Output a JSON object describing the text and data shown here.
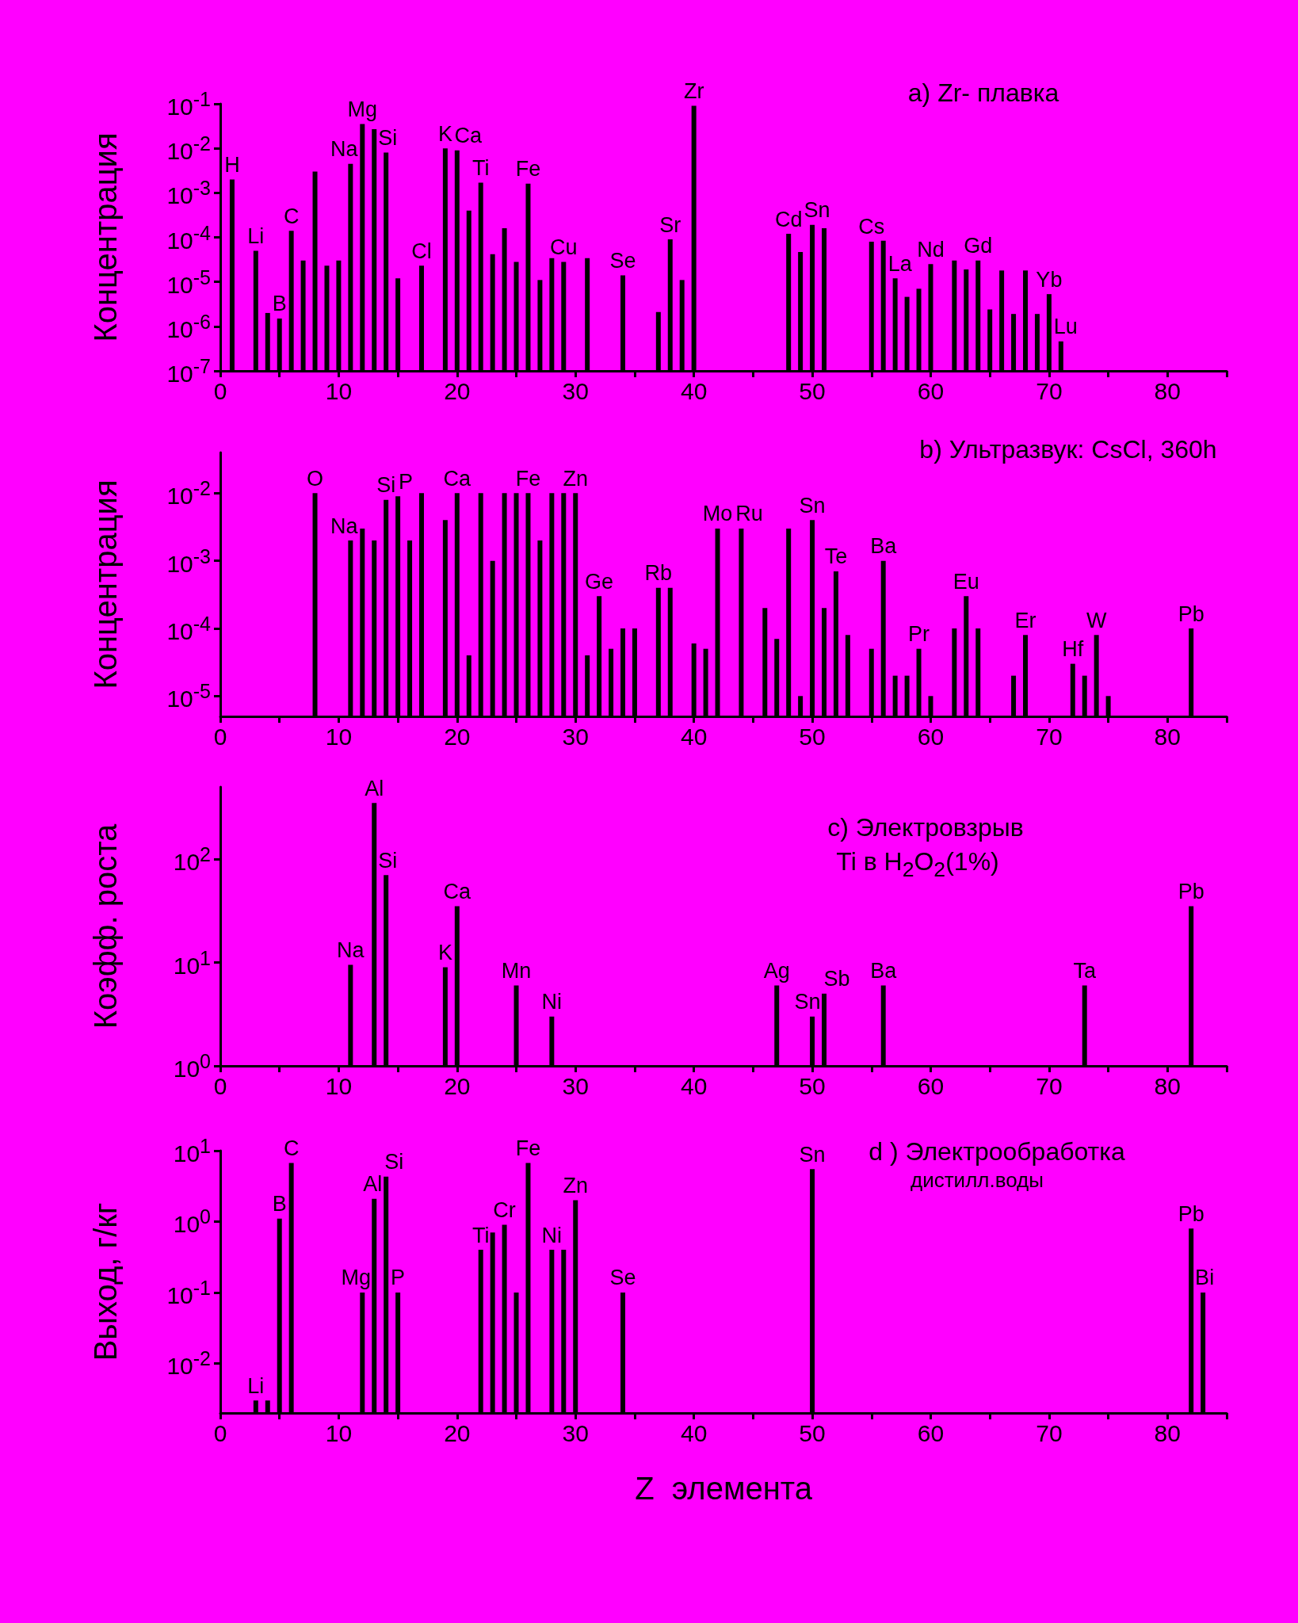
{
  "chart_data": [
    {
      "type": "bar",
      "title": "a) Zr- плавка",
      "ylabel": "Концентрация",
      "log": "y",
      "grid": false,
      "color": "#000000",
      "xlim": [
        0,
        85
      ],
      "xticks": [
        0,
        {
          "value": 5,
          "label": null
        },
        10,
        {
          "value": 15,
          "label": null
        },
        20,
        {
          "value": 25,
          "label": null
        },
        30,
        {
          "value": 35,
          "label": null
        },
        40,
        {
          "value": 45,
          "label": null
        },
        50,
        {
          "value": 55,
          "label": null
        },
        60,
        {
          "value": 65,
          "label": null
        },
        70,
        {
          "value": 75,
          "label": null
        },
        80,
        {
          "value": 85,
          "label": null
        }
      ],
      "ylim": [
        1e-07,
        0.1
      ],
      "yticks": [
        {
          "value": 1e-07,
          "label": "10$^{-7}$"
        },
        {
          "value": 1e-06,
          "label": "10$^{-6}$"
        },
        {
          "value": 1e-05,
          "label": "10$^{-5}$"
        },
        {
          "value": 0.0001,
          "label": "10$^{-4}$"
        },
        {
          "value": 0.001,
          "label": "10$^{-3}$"
        },
        {
          "value": 0.01,
          "label": "10$^{-2}$"
        },
        {
          "value": 0.1,
          "label": "10$^{-1}$"
        }
      ],
      "x": [
        1,
        3,
        4,
        5,
        6,
        7,
        8,
        9,
        10,
        11,
        12,
        13,
        14,
        15,
        17,
        19,
        20,
        21,
        22,
        23,
        24,
        25,
        26,
        27,
        28,
        29,
        31,
        34,
        37,
        38,
        39,
        40,
        48,
        49,
        50,
        51,
        55,
        56,
        57,
        58,
        59,
        60,
        62,
        63,
        64,
        65,
        66,
        67,
        68,
        69,
        70,
        71
      ],
      "values": [
        0.002,
        5e-05,
        2e-06,
        1.5e-06,
        0.00014,
        3e-05,
        0.003,
        2.3e-05,
        3e-05,
        0.0045,
        0.035,
        0.027,
        0.008,
        1.2e-05,
        2.3e-05,
        0.01,
        0.009,
        0.0004,
        0.0017,
        4.2e-05,
        0.00016,
        2.8e-05,
        0.0016,
        1.1e-05,
        3.4e-05,
        2.8e-05,
        3.4e-05,
        1.4e-05,
        2.1e-06,
        9e-05,
        1.1e-05,
        0.09,
        0.00012,
        4.7e-05,
        0.00019,
        0.00016,
        8e-05,
        8.4e-05,
        1.2e-05,
        4.6e-06,
        7e-06,
        2.5e-05,
        3e-05,
        1.9e-05,
        3e-05,
        2.4e-06,
        1.8e-05,
        1.9e-06,
        1.8e-05,
        1.9e-06,
        5.3e-06,
        4.6e-07
      ],
      "annotations": [
        {
          "text": "H",
          "x": 1,
          "y": 0.002
        },
        {
          "text": "Li",
          "x": 3,
          "y": 5e-05
        },
        {
          "text": "B",
          "x": 5,
          "y": 1.5e-06
        },
        {
          "text": "C",
          "x": 6,
          "y": 0.00014
        },
        {
          "text": "Na",
          "x": 11,
          "y": 0.0045
        },
        {
          "text": "Mg",
          "x": 12,
          "y": 0.035
        },
        {
          "text": "Si",
          "x": 14,
          "y": 0.008
        },
        {
          "text": "Cl",
          "x": 17,
          "y": 2.3e-05
        },
        {
          "text": "K",
          "x": 19,
          "y": 0.01
        },
        {
          "text": "Ca",
          "x": 20,
          "y": 0.009
        },
        {
          "text": "Ti",
          "x": 22,
          "y": 0.0017
        },
        {
          "text": "Fe",
          "x": 26,
          "y": 0.0016
        },
        {
          "text": "Cu",
          "x": 29,
          "y": 2.8e-05
        },
        {
          "text": "Se",
          "x": 34,
          "y": 1.4e-05
        },
        {
          "text": "Sr",
          "x": 38,
          "y": 9e-05
        },
        {
          "text": "Zr",
          "x": 40,
          "y": 0.09
        },
        {
          "text": "Cd",
          "x": 48,
          "y": 0.00012
        },
        {
          "text": "Sn",
          "x": 50,
          "y": 0.00019
        },
        {
          "text": "Cs",
          "x": 55,
          "y": 8e-05
        },
        {
          "text": "La",
          "x": 57,
          "y": 1.2e-05
        },
        {
          "text": "Nd",
          "x": 60,
          "y": 2.5e-05
        },
        {
          "text": "Gd",
          "x": 64,
          "y": 3e-05
        },
        {
          "text": "Yb",
          "x": 70,
          "y": 5.3e-06
        },
        {
          "text": "Lu",
          "x": 71,
          "y": 4.6e-07
        }
      ]
    },
    {
      "type": "bar",
      "title": "b) Ультразвук: CsCl, 360h",
      "ylabel": "Концентрация",
      "log": "y",
      "grid": false,
      "color": "#000000",
      "xlim": [
        0,
        85
      ],
      "xticks": [
        0,
        {
          "value": 5,
          "label": null
        },
        10,
        {
          "value": 15,
          "label": null
        },
        20,
        {
          "value": 25,
          "label": null
        },
        30,
        {
          "value": 35,
          "label": null
        },
        40,
        {
          "value": 45,
          "label": null
        },
        50,
        {
          "value": 55,
          "label": null
        },
        60,
        {
          "value": 65,
          "label": null
        },
        70,
        {
          "value": 75,
          "label": null
        },
        80,
        {
          "value": 85,
          "label": null
        }
      ],
      "ylim": [
        5e-06,
        0.04
      ],
      "yticks": [
        {
          "value": 1e-05,
          "label": "10$^{-5}$"
        },
        {
          "value": 0.0001,
          "label": "10$^{-4}$"
        },
        {
          "value": 0.001,
          "label": "10$^{-3}$"
        },
        {
          "value": 0.01,
          "label": "10$^{-2}$"
        }
      ],
      "x": [
        8,
        11,
        12,
        13,
        14,
        15,
        16,
        17,
        19,
        20,
        21,
        22,
        23,
        24,
        25,
        26,
        27,
        28,
        29,
        30,
        31,
        32,
        33,
        34,
        35,
        37,
        38,
        40,
        41,
        42,
        44,
        46,
        47,
        48,
        49,
        50,
        51,
        52,
        53,
        55,
        56,
        57,
        58,
        59,
        60,
        62,
        63,
        64,
        67,
        68,
        72,
        73,
        74,
        75,
        82
      ],
      "values": [
        0.01,
        0.002,
        0.003,
        0.002,
        0.008,
        0.009,
        0.002,
        0.01,
        0.004,
        0.01,
        4e-05,
        0.01,
        0.001,
        0.01,
        0.01,
        0.01,
        0.002,
        0.01,
        0.01,
        0.01,
        4e-05,
        0.0003,
        5e-05,
        0.0001,
        0.0001,
        0.0004,
        0.0004,
        6e-05,
        5e-05,
        0.003,
        0.003,
        0.0002,
        7e-05,
        0.003,
        1e-05,
        0.004,
        0.0002,
        0.0007,
        8e-05,
        5e-05,
        0.001,
        2e-05,
        2e-05,
        5e-05,
        1e-05,
        0.0001,
        0.0003,
        0.0001,
        2e-05,
        8e-05,
        3e-05,
        2e-05,
        8e-05,
        1e-05,
        0.0001
      ],
      "annotations": [
        {
          "text": "O",
          "x": 8,
          "y": 0.01
        },
        {
          "text": "Na",
          "x": 11,
          "y": 0.002
        },
        {
          "text": "Si",
          "x": 14,
          "y": 0.008
        },
        {
          "text": "P",
          "x": 15,
          "y": 0.009
        },
        {
          "text": "Ca",
          "x": 20,
          "y": 0.01
        },
        {
          "text": "Fe",
          "x": 26,
          "y": 0.01
        },
        {
          "text": "Zn",
          "x": 30,
          "y": 0.01
        },
        {
          "text": "Ge",
          "x": 32,
          "y": 0.0003
        },
        {
          "text": "Rb",
          "x": 37,
          "y": 0.0004
        },
        {
          "text": "Mo",
          "x": 42,
          "y": 0.003
        },
        {
          "text": "Ru",
          "x": 44,
          "y": 0.003
        },
        {
          "text": "Sn",
          "x": 50,
          "y": 0.004
        },
        {
          "text": "Te",
          "x": 52,
          "y": 0.0007
        },
        {
          "text": "Ba",
          "x": 56,
          "y": 0.001
        },
        {
          "text": "Pr",
          "x": 59,
          "y": 5e-05
        },
        {
          "text": "Eu",
          "x": 63,
          "y": 0.0003
        },
        {
          "text": "Er",
          "x": 68,
          "y": 8e-05
        },
        {
          "text": "Hf",
          "x": 72,
          "y": 3e-05
        },
        {
          "text": "W",
          "x": 74,
          "y": 8e-05
        },
        {
          "text": "Pb",
          "x": 82,
          "y": 0.0001
        }
      ]
    },
    {
      "type": "bar",
      "title": "c) Электровзрыв",
      "subtitle": "Ti в H$_{2}$O$_{2}$(1%)",
      "ylabel": "Коэфф. роста",
      "log": "y",
      "grid": false,
      "color": "#000000",
      "xlim": [
        0,
        85
      ],
      "xticks": [
        0,
        {
          "value": 5,
          "label": null
        },
        10,
        {
          "value": 15,
          "label": null
        },
        20,
        {
          "value": 25,
          "label": null
        },
        30,
        {
          "value": 35,
          "label": null
        },
        40,
        {
          "value": 45,
          "label": null
        },
        50,
        {
          "value": 55,
          "label": null
        },
        60,
        {
          "value": 65,
          "label": null
        },
        70,
        {
          "value": 75,
          "label": null
        },
        80,
        {
          "value": 85,
          "label": null
        }
      ],
      "ylim": [
        1,
        500
      ],
      "yticks": [
        {
          "value": 1,
          "label": "10$^{0}$"
        },
        {
          "value": 10,
          "label": "10$^{1}$"
        },
        {
          "value": 100,
          "label": "10$^{2}$"
        }
      ],
      "x": [
        11,
        13,
        14,
        19,
        20,
        25,
        28,
        47,
        50,
        51,
        56,
        73,
        82
      ],
      "values": [
        9.5,
        350,
        70,
        9,
        35,
        6,
        3,
        6,
        3,
        5,
        6,
        6,
        35
      ],
      "annotations": [
        {
          "text": "Na",
          "x": 11,
          "y": 9.5
        },
        {
          "text": "Al",
          "x": 13,
          "y": 350
        },
        {
          "text": "Si",
          "x": 14,
          "y": 70
        },
        {
          "text": "K",
          "x": 19,
          "y": 9
        },
        {
          "text": "Ca",
          "x": 20,
          "y": 35
        },
        {
          "text": "Mn",
          "x": 25,
          "y": 6
        },
        {
          "text": "Ni",
          "x": 28,
          "y": 3
        },
        {
          "text": "Ag",
          "x": 47,
          "y": 6
        },
        {
          "text": "Sn",
          "x": 50,
          "y": 3
        },
        {
          "text": "Sb",
          "x": 51,
          "y": 5
        },
        {
          "text": "Ba",
          "x": 56,
          "y": 6
        },
        {
          "text": "Ta",
          "x": 73,
          "y": 6
        },
        {
          "text": "Pb",
          "x": 82,
          "y": 35
        }
      ]
    },
    {
      "type": "bar",
      "title": "d ) Электрообработка",
      "subtitle": "дистилл.воды",
      "ylabel": "Выход, г/кг",
      "xlabel": "Z  элемента",
      "log": "y",
      "grid": false,
      "color": "#000000",
      "xlim": [
        0,
        85
      ],
      "xticks": [
        0,
        {
          "value": 5,
          "label": null
        },
        10,
        {
          "value": 15,
          "label": null
        },
        20,
        {
          "value": 25,
          "label": null
        },
        30,
        {
          "value": 35,
          "label": null
        },
        40,
        {
          "value": 45,
          "label": null
        },
        50,
        {
          "value": 55,
          "label": null
        },
        60,
        {
          "value": 65,
          "label": null
        },
        70,
        {
          "value": 75,
          "label": null
        },
        80,
        {
          "value": 85,
          "label": null
        }
      ],
      "ylim": [
        0.002,
        10
      ],
      "yticks": [
        {
          "value": 0.01,
          "label": "10$^{-2}$"
        },
        {
          "value": 0.1,
          "label": "10$^{-1}$"
        },
        {
          "value": 1,
          "label": "10$^{0}$"
        },
        {
          "value": 10,
          "label": "10$^{1}$"
        }
      ],
      "x": [
        3,
        4,
        5,
        6,
        12,
        13,
        14,
        15,
        22,
        23,
        24,
        25,
        26,
        28,
        29,
        30,
        34,
        50,
        82,
        83
      ],
      "values": [
        0.003,
        0.003,
        1.1,
        6.7,
        0.1,
        2.1,
        4.3,
        0.1,
        0.4,
        0.7,
        0.9,
        0.1,
        6.7,
        0.4,
        0.4,
        2,
        0.1,
        5.5,
        0.8,
        0.1
      ],
      "annotations": [
        {
          "text": "Li",
          "x": 3,
          "y": 0.003
        },
        {
          "text": "B",
          "x": 5,
          "y": 1.1
        },
        {
          "text": "C",
          "x": 6,
          "y": 6.7
        },
        {
          "text": "Mg",
          "x": 12,
          "y": 0.1
        },
        {
          "text": "Al",
          "x": 13,
          "y": 2.1
        },
        {
          "text": "Si",
          "x": 14,
          "y": 4.3
        },
        {
          "text": "P",
          "x": 15,
          "y": 0.1
        },
        {
          "text": "Ti",
          "x": 22,
          "y": 0.4
        },
        {
          "text": "Cr",
          "x": 24,
          "y": 0.9
        },
        {
          "text": "Fe",
          "x": 26,
          "y": 6.7
        },
        {
          "text": "Ni",
          "x": 28,
          "y": 0.4
        },
        {
          "text": "Zn",
          "x": 30,
          "y": 2
        },
        {
          "text": "Se",
          "x": 34,
          "y": 0.1
        },
        {
          "text": "Sn",
          "x": 50,
          "y": 5.5
        },
        {
          "text": "Pb",
          "x": 82,
          "y": 0.8
        },
        {
          "text": "Bi",
          "x": 83,
          "y": 0.1
        }
      ]
    }
  ]
}
